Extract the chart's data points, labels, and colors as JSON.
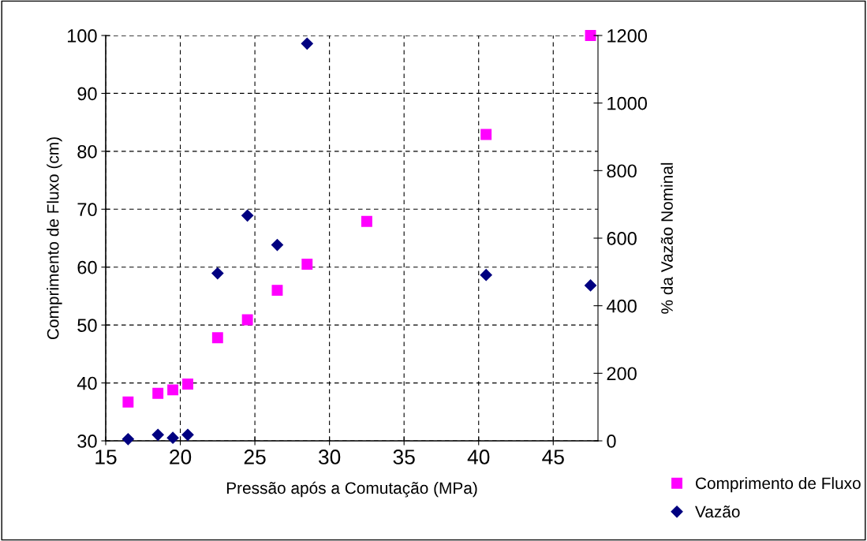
{
  "chart_data": {
    "type": "scatter",
    "xlabel": "Pressão após a Comutação (MPa)",
    "ylabel": "Comprimento de Fluxo (cm)",
    "y2label": "% da Vazão Nominal",
    "xlim": [
      15,
      48
    ],
    "xticks": [
      15,
      20,
      25,
      30,
      35,
      40,
      45
    ],
    "ylim": [
      30,
      100
    ],
    "yticks": [
      30,
      40,
      50,
      60,
      70,
      80,
      90,
      100
    ],
    "y2lim": [
      0,
      1200
    ],
    "y2ticks": [
      0,
      200,
      400,
      600,
      800,
      1000,
      1200
    ],
    "grid": true,
    "legend": "bottom right",
    "series": [
      {
        "name": "Comprimento de Fluxo",
        "color": "#ff00ff",
        "marker": "square",
        "x": [
          16.5,
          18.5,
          19.5,
          20.5,
          22.5,
          24.5,
          26.5,
          28.5,
          32.5,
          40.5,
          47.5
        ],
        "values": [
          36.7,
          38.2,
          38.8,
          39.8,
          47.8,
          50.9,
          56.0,
          60.5,
          67.9,
          82.9,
          100
        ]
      },
      {
        "name": "Vazão",
        "color": "#000080",
        "marker": "diamond",
        "axis": "y2",
        "x": [
          16.5,
          18.5,
          19.5,
          20.5,
          22.5,
          24.5,
          26.5,
          28.5,
          40.5,
          47.5
        ],
        "values": [
          5,
          18,
          9,
          18,
          496,
          667,
          580,
          1176,
          491,
          460
        ]
      }
    ]
  }
}
